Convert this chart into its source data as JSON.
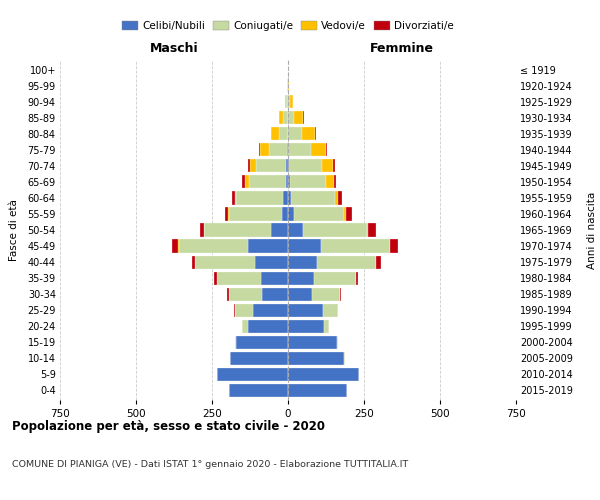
{
  "age_groups": [
    "0-4",
    "5-9",
    "10-14",
    "15-19",
    "20-24",
    "25-29",
    "30-34",
    "35-39",
    "40-44",
    "45-49",
    "50-54",
    "55-59",
    "60-64",
    "65-69",
    "70-74",
    "75-79",
    "80-84",
    "85-89",
    "90-94",
    "95-99",
    "100+"
  ],
  "birth_years": [
    "2015-2019",
    "2010-2014",
    "2005-2009",
    "2000-2004",
    "1995-1999",
    "1990-1994",
    "1985-1989",
    "1980-1984",
    "1975-1979",
    "1970-1974",
    "1965-1969",
    "1960-1964",
    "1955-1959",
    "1950-1954",
    "1945-1949",
    "1940-1944",
    "1935-1939",
    "1930-1934",
    "1925-1929",
    "1920-1924",
    "≤ 1919"
  ],
  "male": {
    "celibi": [
      195,
      235,
      190,
      170,
      130,
      115,
      85,
      90,
      110,
      130,
      55,
      20,
      15,
      8,
      5,
      2,
      0,
      0,
      0,
      0,
      0
    ],
    "coniugati": [
      0,
      0,
      2,
      5,
      20,
      60,
      110,
      145,
      195,
      230,
      220,
      175,
      155,
      120,
      100,
      60,
      30,
      15,
      5,
      2,
      0
    ],
    "vedovi": [
      0,
      0,
      0,
      0,
      0,
      0,
      0,
      0,
      1,
      2,
      2,
      3,
      5,
      15,
      20,
      30,
      25,
      15,
      5,
      1,
      0
    ],
    "divorziati": [
      0,
      0,
      0,
      0,
      0,
      2,
      5,
      8,
      10,
      20,
      12,
      10,
      10,
      8,
      8,
      4,
      2,
      1,
      0,
      0,
      0
    ]
  },
  "female": {
    "nubili": [
      195,
      235,
      185,
      160,
      120,
      115,
      80,
      85,
      95,
      110,
      50,
      20,
      10,
      5,
      3,
      0,
      0,
      0,
      0,
      0,
      0
    ],
    "coniugate": [
      0,
      0,
      2,
      5,
      15,
      50,
      90,
      140,
      195,
      225,
      210,
      165,
      145,
      120,
      110,
      75,
      45,
      20,
      5,
      1,
      0
    ],
    "vedove": [
      0,
      0,
      0,
      0,
      0,
      0,
      0,
      0,
      1,
      2,
      3,
      5,
      10,
      25,
      35,
      50,
      45,
      30,
      10,
      3,
      1
    ],
    "divorziate": [
      0,
      0,
      0,
      0,
      0,
      1,
      3,
      5,
      15,
      25,
      25,
      20,
      12,
      8,
      5,
      3,
      2,
      1,
      0,
      0,
      0
    ]
  },
  "colors": {
    "celibi": "#4472c4",
    "coniugati": "#c5d9a0",
    "vedovi": "#ffc000",
    "divorziati": "#c0000c"
  },
  "xlim": 750,
  "title": "Popolazione per età, sesso e stato civile - 2020",
  "subtitle": "COMUNE DI PIANIGA (VE) - Dati ISTAT 1° gennaio 2020 - Elaborazione TUTTITALIA.IT",
  "left_header": "Maschi",
  "right_header": "Femmine",
  "left_axis_label": "Fasce di età",
  "right_axis_label": "Anni di nascita"
}
